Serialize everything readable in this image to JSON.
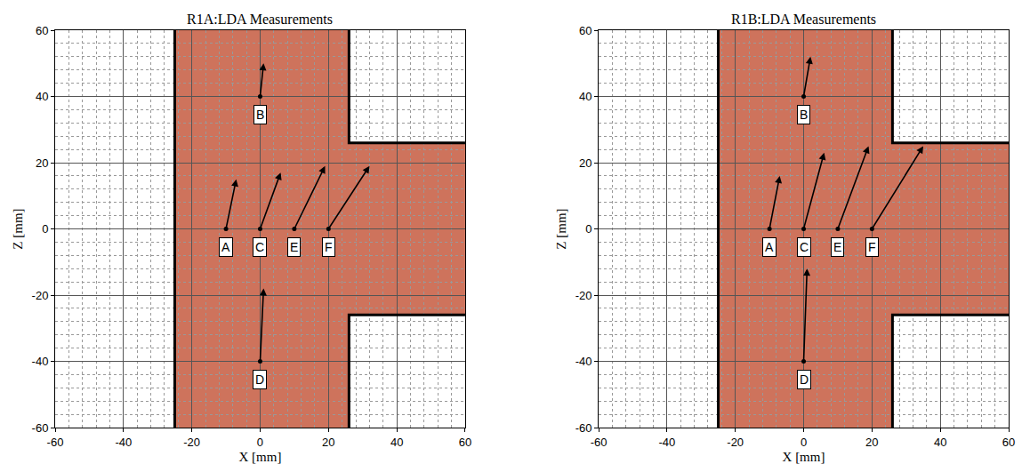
{
  "chart_data": [
    {
      "type": "vector",
      "title": "R1A:LDA Measurements",
      "x_label": "X [mm]",
      "y_label": "Z [mm]",
      "xlim": [
        -60,
        60
      ],
      "ylim": [
        -60,
        60
      ],
      "xticks": [
        -60,
        -40,
        -20,
        0,
        20,
        40,
        60
      ],
      "yticks": [
        -60,
        -40,
        -20,
        0,
        20,
        40,
        60
      ],
      "grid": true,
      "color": "#c65a40",
      "channel": {
        "x": [
          -25,
          26,
          26,
          60,
          60,
          26,
          26,
          -25
        ],
        "z": [
          -60,
          -60,
          -26,
          -26,
          26,
          26,
          60,
          60
        ]
      },
      "walls": [
        {
          "x": [
            -25,
            -25
          ],
          "z": [
            -60,
            60
          ]
        },
        {
          "x": [
            26,
            26,
            60
          ],
          "z": [
            60,
            26,
            26
          ]
        },
        {
          "x": [
            60,
            26,
            26
          ],
          "z": [
            -26,
            -26,
            -60
          ]
        }
      ],
      "vectors": [
        {
          "label": "A",
          "x": -10,
          "z": 0,
          "x_end": -7,
          "z_end": 15
        },
        {
          "label": "C",
          "x": 0,
          "z": 0,
          "x_end": 6,
          "z_end": 17
        },
        {
          "label": "E",
          "x": 10,
          "z": 0,
          "x_end": 19,
          "z_end": 19
        },
        {
          "label": "F",
          "x": 20,
          "z": 0,
          "x_end": 32,
          "z_end": 19
        },
        {
          "label": "B",
          "x": 0,
          "z": 40,
          "x_end": 1,
          "z_end": 50
        },
        {
          "label": "D",
          "x": 0,
          "z": -40,
          "x_end": 1,
          "z_end": -18
        }
      ]
    },
    {
      "type": "vector",
      "title": "R1B:LDA Measurements",
      "x_label": "X [mm]",
      "y_label": "Z [mm]",
      "xlim": [
        -60,
        60
      ],
      "ylim": [
        -60,
        60
      ],
      "xticks": [
        -60,
        -40,
        -20,
        0,
        20,
        40,
        60
      ],
      "yticks": [
        -60,
        -40,
        -20,
        0,
        20,
        40,
        60
      ],
      "grid": true,
      "color": "#c65a40",
      "channel": {
        "x": [
          -25,
          26,
          26,
          60,
          60,
          26,
          26,
          -25
        ],
        "z": [
          -60,
          -60,
          -26,
          -26,
          26,
          26,
          60,
          60
        ]
      },
      "walls": [
        {
          "x": [
            -25,
            -25
          ],
          "z": [
            -60,
            60
          ]
        },
        {
          "x": [
            26,
            26,
            60
          ],
          "z": [
            60,
            26,
            26
          ]
        },
        {
          "x": [
            60,
            26,
            26
          ],
          "z": [
            -26,
            -26,
            -60
          ]
        }
      ],
      "vectors": [
        {
          "label": "A",
          "x": -10,
          "z": 0,
          "x_end": -7,
          "z_end": 16
        },
        {
          "label": "C",
          "x": 0,
          "z": 0,
          "x_end": 6,
          "z_end": 23
        },
        {
          "label": "E",
          "x": 10,
          "z": 0,
          "x_end": 19,
          "z_end": 25
        },
        {
          "label": "F",
          "x": 20,
          "z": 0,
          "x_end": 35,
          "z_end": 25
        },
        {
          "label": "B",
          "x": 0,
          "z": 40,
          "x_end": 2,
          "z_end": 52
        },
        {
          "label": "D",
          "x": 0,
          "z": -40,
          "x_end": 1,
          "z_end": -12
        }
      ]
    }
  ]
}
